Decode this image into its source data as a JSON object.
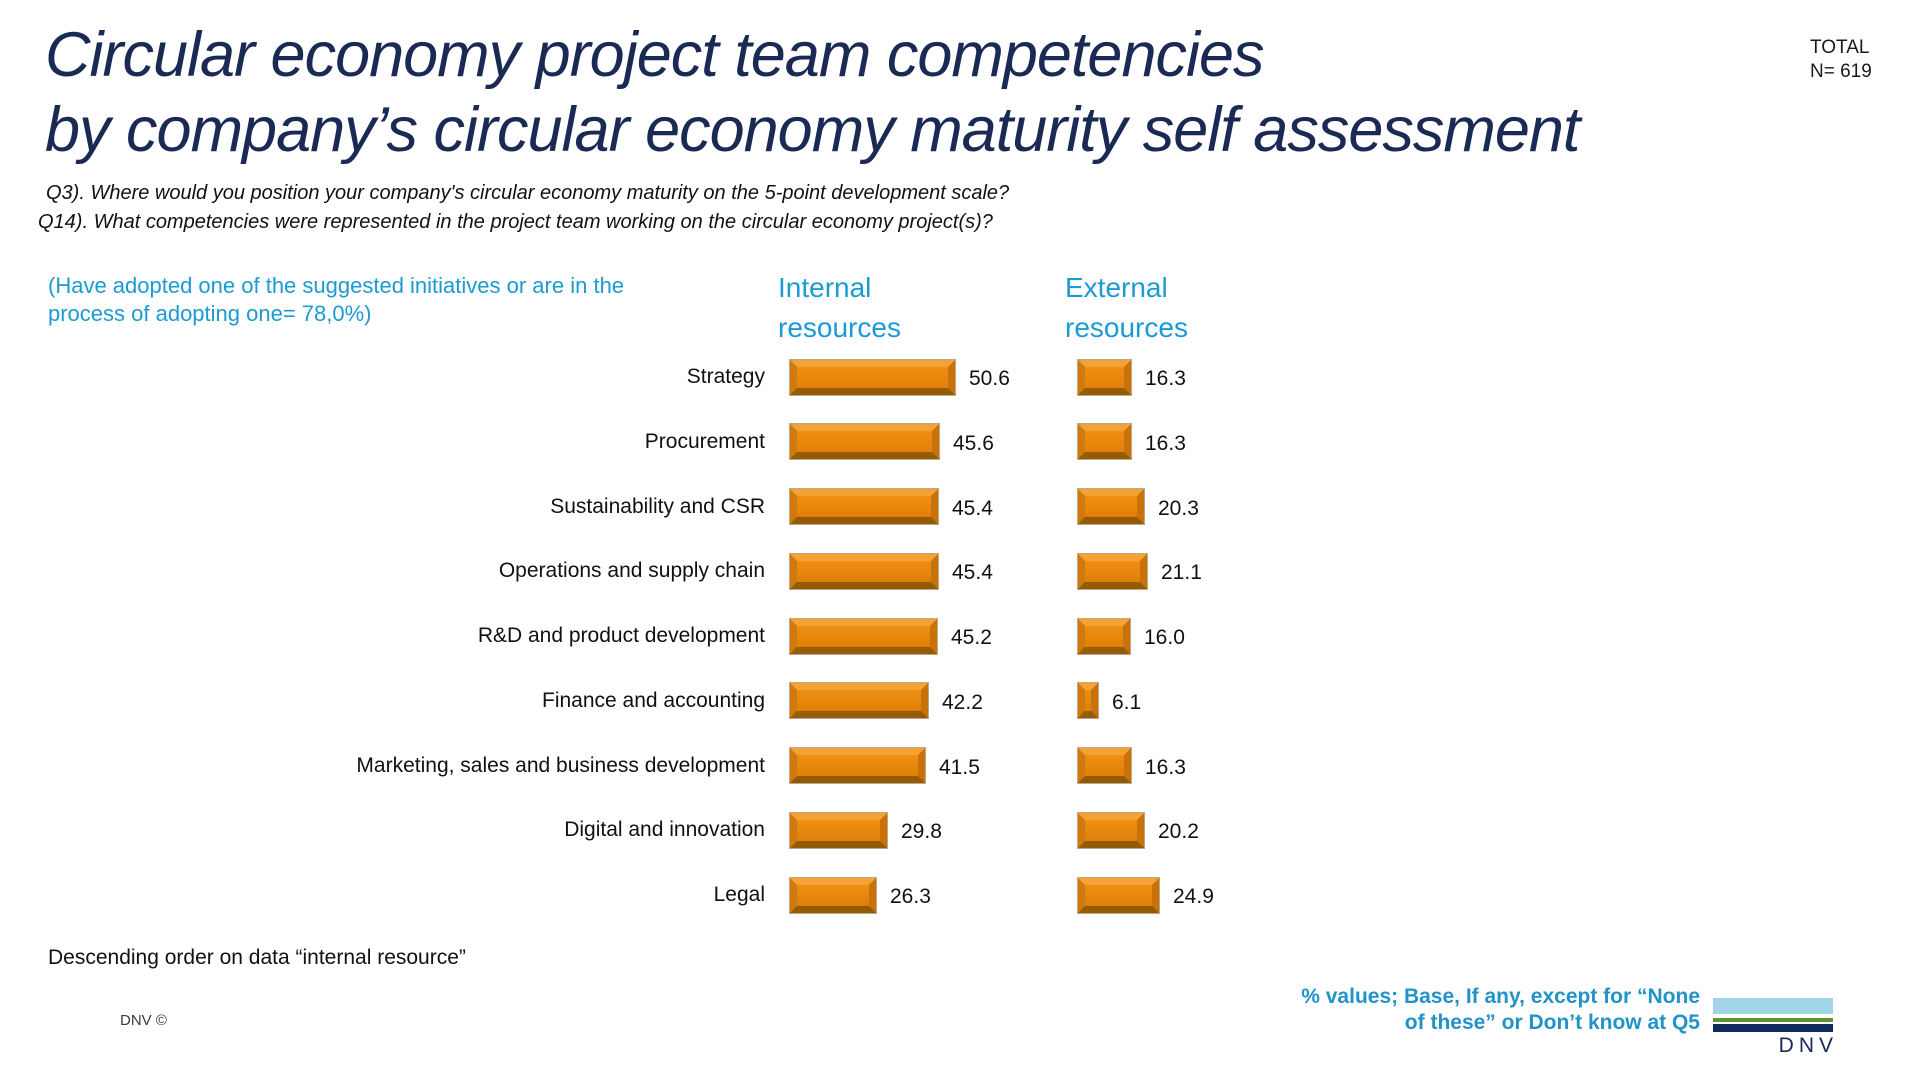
{
  "slide": {
    "title_line1": "Circular economy project team competencies",
    "title_line2": "by company’s circular economy maturity self assessment",
    "total_label": "TOTAL",
    "total_n": "N= 619",
    "q3": "Q3). Where would you position your company's circular economy maturity on the 5-point development scale?",
    "q14": "Q14). What competencies were represented in the project team working on the circular economy project(s)?",
    "note_left": "(Have adopted one of the suggested initiatives or are in the process of adopting one= 78,0%)",
    "footer_note": "Descending order on data “internal resource”",
    "copyright": "DNV ©",
    "base_note_line1": "% values; Base, If any, except for “None",
    "base_note_line2": "of these” or Don’t know at Q5",
    "logo_text": "DNV"
  },
  "colors": {
    "title_navy": "#1B2A55",
    "accent_blue": "#1B9AD4",
    "bar_orange": "#E8860D",
    "logo_lightblue": "#A3D5E8",
    "logo_green": "#5E9634",
    "logo_navy": "#0F2A5C"
  },
  "chart_data": {
    "type": "bar",
    "orientation": "horizontal",
    "title": "Circular economy project team competencies by company’s circular economy maturity self assessment",
    "categories": [
      "Strategy",
      "Procurement",
      "Sustainability and CSR",
      "Operations and supply chain",
      "R&D and product development",
      "Finance and accounting",
      "Marketing, sales and business development",
      "Digital and innovation",
      "Legal"
    ],
    "series": [
      {
        "name": "Internal resources",
        "values": [
          50.6,
          45.6,
          45.4,
          45.4,
          45.2,
          42.2,
          41.5,
          29.8,
          26.3
        ]
      },
      {
        "name": "External resources",
        "values": [
          16.3,
          16.3,
          20.3,
          21.1,
          16.0,
          6.1,
          16.3,
          20.2,
          24.9
        ]
      }
    ],
    "value_format": "one_decimal",
    "units": "percent",
    "sort_note": "Descending order on data “internal resource”",
    "grid": false,
    "axes_visible": false
  }
}
